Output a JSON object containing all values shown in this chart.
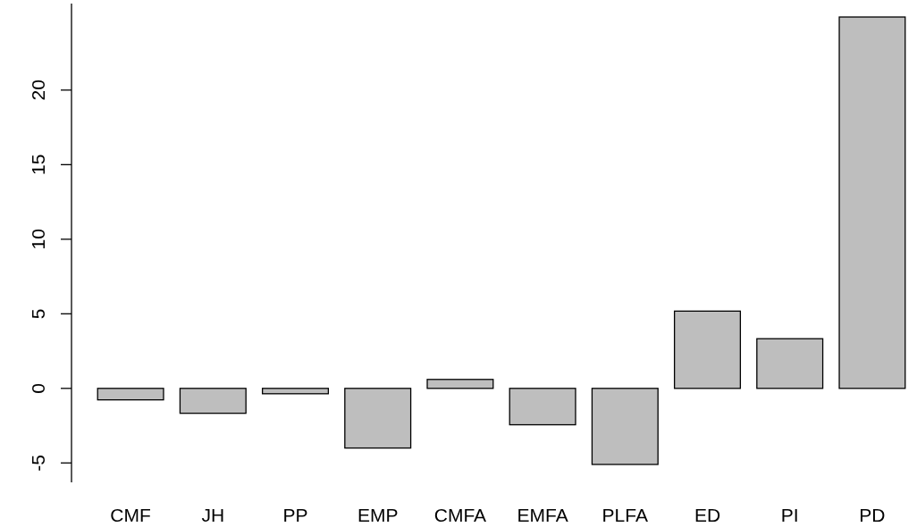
{
  "chart_data": {
    "type": "bar",
    "categories": [
      "CMF",
      "JH",
      "PP",
      "EMP",
      "CMFA",
      "EMFA",
      "PLFA",
      "ED",
      "PI",
      "PD"
    ],
    "values": [
      -0.77,
      -1.67,
      -0.36,
      -4.0,
      0.6,
      -2.44,
      -5.1,
      5.18,
      3.33,
      24.9
    ],
    "color": "#bebebe",
    "ylim": [
      -6.3,
      25.8
    ],
    "yticks": [
      -5,
      0,
      5,
      10,
      15,
      20
    ],
    "grid": false
  }
}
